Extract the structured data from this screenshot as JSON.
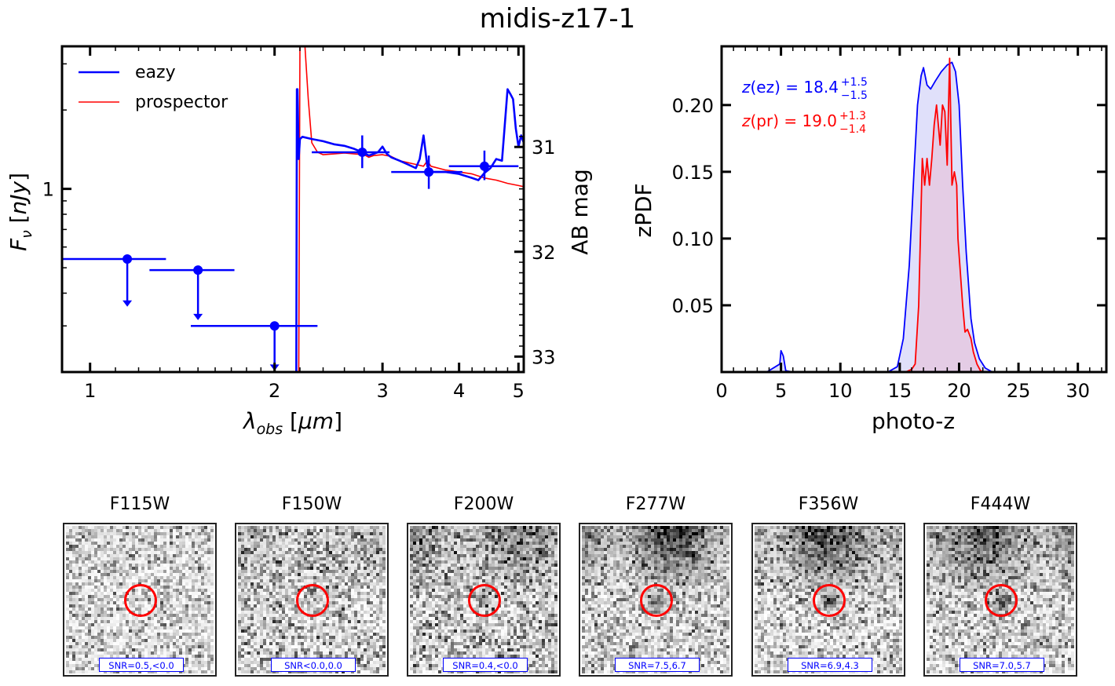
{
  "title": "midis-z17-1",
  "chart_data": [
    {
      "type": "line",
      "name": "sed",
      "title": "",
      "xlabel": "λ_obs [μm]",
      "ylabel": "F_ν [nJy]",
      "y2label": "AB mag",
      "xscale": "log",
      "yscale": "log",
      "xlim": [
        0.9,
        5.1
      ],
      "ylim": [
        0.2,
        3.5
      ],
      "xticks": [
        1,
        2,
        3,
        4,
        5
      ],
      "xticklabels": [
        "1",
        "2",
        "3",
        "4",
        "5"
      ],
      "yticks": [
        1
      ],
      "yticklabels": [
        "1"
      ],
      "y2ticks": [
        31,
        32,
        33
      ],
      "y2ticklabels": [
        "31",
        "32",
        "33"
      ],
      "legend": {
        "placement": "top-left",
        "entries": [
          {
            "label": "eazy",
            "color": "#0000ff"
          },
          {
            "label": "prospector",
            "color": "#ff0000"
          }
        ]
      },
      "series": [
        {
          "name": "eazy",
          "color": "#0000ff",
          "x": [
            0.9,
            2.17,
            2.175,
            2.18,
            2.19,
            2.2,
            2.22,
            2.3,
            2.4,
            2.5,
            2.6,
            2.7,
            2.8,
            2.85,
            2.9,
            2.95,
            3.0,
            3.05,
            3.1,
            3.2,
            3.3,
            3.4,
            3.45,
            3.5,
            3.55,
            3.6,
            3.8,
            4.0,
            4.2,
            4.3,
            4.4,
            4.5,
            4.6,
            4.7,
            4.8,
            4.85,
            4.9,
            4.95,
            5.0,
            5.05,
            5.1
          ],
          "y": [
            0.001,
            0.001,
            2.4,
            2.4,
            1.3,
            1.55,
            1.58,
            1.55,
            1.52,
            1.48,
            1.46,
            1.42,
            1.37,
            1.34,
            1.36,
            1.38,
            1.45,
            1.36,
            1.32,
            1.28,
            1.24,
            1.2,
            1.3,
            1.6,
            1.22,
            1.16,
            1.16,
            1.14,
            1.1,
            1.08,
            1.15,
            1.2,
            1.3,
            1.28,
            2.4,
            2.3,
            2.2,
            1.7,
            1.45,
            1.6,
            1.5
          ]
        },
        {
          "name": "prospector",
          "color": "#ff0000",
          "x": [
            0.9,
            2.19,
            2.2,
            2.22,
            2.24,
            2.27,
            2.3,
            2.35,
            2.4,
            2.5,
            2.6,
            2.7,
            2.8,
            2.85,
            2.9,
            3.0,
            3.1,
            3.2,
            3.4,
            3.5,
            3.55,
            3.6,
            3.8,
            4.0,
            4.2,
            4.4,
            4.6,
            4.8,
            5.0,
            5.1
          ],
          "y": [
            0.001,
            0.001,
            3.6,
            3.6,
            3.6,
            2.2,
            1.5,
            1.38,
            1.35,
            1.36,
            1.37,
            1.36,
            1.35,
            1.32,
            1.34,
            1.35,
            1.33,
            1.28,
            1.24,
            1.22,
            1.28,
            1.22,
            1.18,
            1.16,
            1.14,
            1.1,
            1.08,
            1.05,
            1.03,
            1.02
          ]
        }
      ],
      "photometry": [
        {
          "filter": "F115W",
          "wave": 1.15,
          "flux": 0.54,
          "xerr": [
            0.9,
            1.33
          ],
          "upper_limit": true,
          "arrow_to": 0.36
        },
        {
          "filter": "F150W",
          "wave": 1.5,
          "flux": 0.49,
          "xerr": [
            1.25,
            1.72
          ],
          "upper_limit": true,
          "arrow_to": 0.32
        },
        {
          "filter": "F200W",
          "wave": 2.0,
          "flux": 0.3,
          "xerr": [
            1.46,
            2.35
          ],
          "upper_limit": true,
          "arrow_to": 0.205
        },
        {
          "filter": "F277W",
          "wave": 2.78,
          "flux": 1.38,
          "xerr": [
            2.3,
            3.08
          ],
          "yerr": [
            1.2,
            1.6
          ],
          "upper_limit": false
        },
        {
          "filter": "F356W",
          "wave": 3.57,
          "flux": 1.16,
          "xerr": [
            3.1,
            4.05
          ],
          "yerr": [
            1.0,
            1.34
          ],
          "upper_limit": false
        },
        {
          "filter": "F444W",
          "wave": 4.4,
          "flux": 1.22,
          "xerr": [
            3.85,
            5.0
          ],
          "yerr": [
            1.08,
            1.4
          ],
          "upper_limit": false
        }
      ]
    },
    {
      "type": "area",
      "name": "zpdf",
      "xlabel": "photo-z",
      "ylabel": "zPDF",
      "xlim": [
        0,
        32.4
      ],
      "ylim": [
        0,
        0.244
      ],
      "xticks": [
        0,
        5,
        10,
        15,
        20,
        25,
        30
      ],
      "xticklabels": [
        "0",
        "5",
        "10",
        "15",
        "20",
        "25",
        "30"
      ],
      "yticks": [
        0.05,
        0.1,
        0.15,
        0.2
      ],
      "yticklabels": [
        "0.05",
        "0.10",
        "0.15",
        "0.20"
      ],
      "annotations": [
        {
          "prefix": "z(ez) = 18.4",
          "sup": "+1.5",
          "sub": "−1.5",
          "color": "#0000ff"
        },
        {
          "prefix": "z(pr) = 19.0",
          "sup": "+1.3",
          "sub": "−1.4",
          "color": "#ff0000"
        }
      ],
      "series": [
        {
          "name": "eazy",
          "color": "#0000ff",
          "fill": "#e0e0fa",
          "x": [
            0,
            3.8,
            4.9,
            5.0,
            5.2,
            5.4,
            6,
            14,
            14.8,
            15.3,
            15.8,
            16.2,
            16.5,
            16.8,
            17.0,
            17.3,
            17.6,
            18.0,
            18.5,
            19.0,
            19.4,
            19.7,
            20.0,
            20.3,
            20.6,
            21.0,
            21.3,
            21.7,
            22.2,
            22.8,
            32.4
          ],
          "y": [
            0,
            0,
            0.006,
            0.016,
            0.012,
            0.001,
            0,
            0,
            0.004,
            0.025,
            0.08,
            0.15,
            0.2,
            0.222,
            0.228,
            0.215,
            0.212,
            0.218,
            0.225,
            0.23,
            0.232,
            0.225,
            0.2,
            0.14,
            0.09,
            0.04,
            0.022,
            0.01,
            0.003,
            0,
            0
          ]
        },
        {
          "name": "prospector",
          "color": "#ff0000",
          "fill": "#e4c8e0",
          "x": [
            0,
            15.5,
            16.0,
            16.3,
            16.6,
            16.9,
            17.1,
            17.3,
            17.5,
            17.7,
            17.9,
            18.1,
            18.4,
            18.6,
            18.8,
            19.0,
            19.2,
            19.4,
            19.6,
            19.8,
            19.9,
            20.1,
            20.3,
            20.5,
            20.7,
            21.0,
            21.2,
            21.5,
            21.8,
            22.1,
            22.6,
            23.2,
            32.4
          ],
          "y": [
            0,
            0,
            0.002,
            0.006,
            0.05,
            0.16,
            0.14,
            0.16,
            0.14,
            0.16,
            0.185,
            0.2,
            0.17,
            0.2,
            0.195,
            0.155,
            0.235,
            0.14,
            0.15,
            0.14,
            0.1,
            0.075,
            0.05,
            0.03,
            0.032,
            0.025,
            0.015,
            0.006,
            0.001,
            0,
            0,
            0,
            0
          ]
        }
      ]
    }
  ],
  "stamps": [
    {
      "filter": "F115W",
      "snr": "SNR=0.5,<0.0",
      "darkness": 0.12,
      "top_cloud": 0.05,
      "source": 0.0
    },
    {
      "filter": "F150W",
      "snr": "SNR<0.0,0.0",
      "darkness": 0.18,
      "top_cloud": 0.15,
      "source": 0.0
    },
    {
      "filter": "F200W",
      "snr": "SNR=0.4,<0.0",
      "darkness": 0.18,
      "top_cloud": 0.45,
      "source": 0.2
    },
    {
      "filter": "F277W",
      "snr": "SNR=7.5,6.7",
      "darkness": 0.14,
      "top_cloud": 0.85,
      "source": 0.45
    },
    {
      "filter": "F356W",
      "snr": "SNR=6.9,4.3",
      "darkness": 0.14,
      "top_cloud": 0.85,
      "source": 0.55
    },
    {
      "filter": "F444W",
      "snr": "SNR=7.0,5.7",
      "darkness": 0.14,
      "top_cloud": 0.8,
      "source": 0.45
    }
  ]
}
